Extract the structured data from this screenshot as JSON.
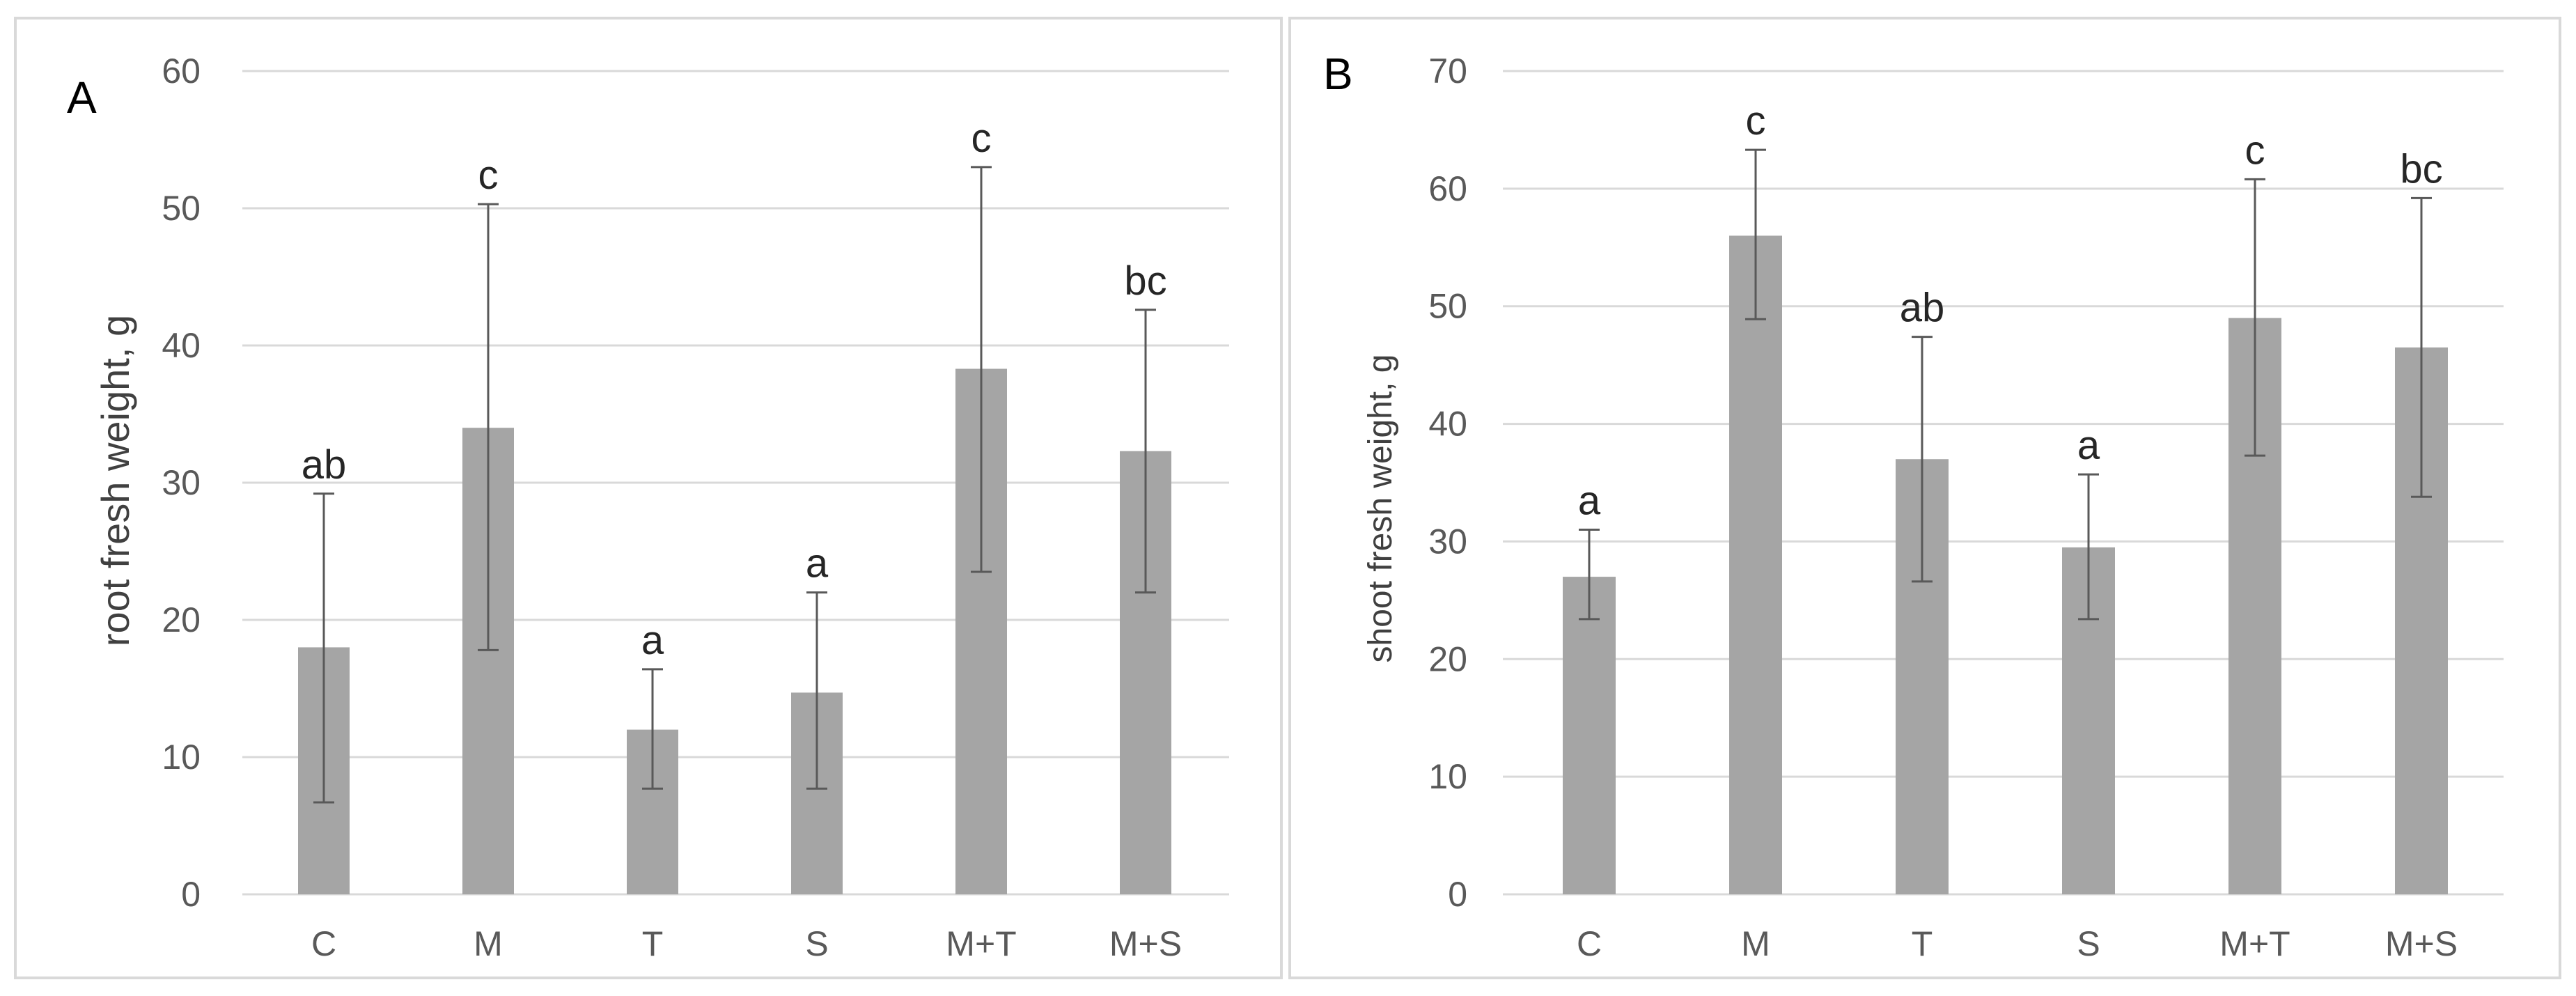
{
  "chart_data": [
    {
      "type": "bar",
      "panel_label": "A",
      "categories": [
        "C",
        "M",
        "T",
        "S",
        "M+T",
        "M+S"
      ],
      "values": [
        18,
        34,
        12,
        14.7,
        38.3,
        32.3
      ],
      "error_upper": [
        29.2,
        50.3,
        16.4,
        22,
        53,
        42.6
      ],
      "error_lower": [
        6.7,
        17.8,
        7.7,
        7.7,
        23.5,
        22
      ],
      "significance": [
        "ab",
        "c",
        "a",
        "a",
        "c",
        "bc"
      ],
      "ylabel": "root fresh weight, g",
      "xlabel": "",
      "ylim": [
        0,
        60
      ],
      "yticks": [
        0,
        10,
        20,
        30,
        40,
        50,
        60
      ],
      "grid": true,
      "color": "#a5a5a5"
    },
    {
      "type": "bar",
      "panel_label": "B",
      "categories": [
        "C",
        "M",
        "T",
        "S",
        "M+T",
        "M+S"
      ],
      "values": [
        27,
        56,
        37,
        29.5,
        49,
        46.5
      ],
      "error_upper": [
        31,
        63.3,
        47.4,
        35.7,
        60.8,
        59.2
      ],
      "error_lower": [
        23.4,
        48.9,
        26.6,
        23.4,
        37.3,
        33.8
      ],
      "significance": [
        "a",
        "c",
        "ab",
        "a",
        "c",
        "bc"
      ],
      "ylabel": "shoot fresh weight, g",
      "xlabel": "",
      "ylim": [
        0,
        70
      ],
      "yticks": [
        0,
        10,
        20,
        30,
        40,
        50,
        60,
        70
      ],
      "grid": true,
      "color": "#a5a5a5"
    }
  ]
}
